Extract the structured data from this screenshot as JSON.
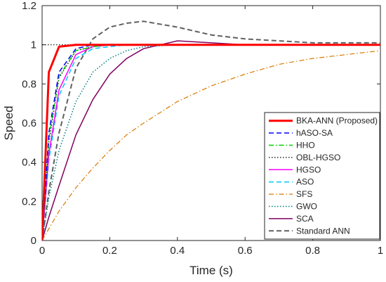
{
  "chart_data": {
    "type": "line",
    "title": "",
    "xlabel": "Time (s)",
    "ylabel": "Speed",
    "xlim": [
      0,
      1
    ],
    "ylim": [
      0,
      1.2
    ],
    "x_ticks": [
      "0",
      "0.2",
      "0.4",
      "0.6",
      "0.8",
      "1"
    ],
    "y_ticks": [
      "0",
      "0.2",
      "0.4",
      "0.6",
      "0.8",
      "1",
      "1.2"
    ],
    "grid": false,
    "legend_position": "bottom-right",
    "x": [
      0,
      0.02,
      0.05,
      0.1,
      0.15,
      0.2,
      0.25,
      0.3,
      0.4,
      0.5,
      0.6,
      0.7,
      0.8,
      0.9,
      1.0
    ],
    "series": [
      {
        "name": "BKA-ANN (Proposed)",
        "color": "#ff0000",
        "style": "solid",
        "width": 3,
        "values": [
          0,
          0.86,
          0.99,
          1.0,
          1.0,
          1.0,
          1.0,
          1.0,
          1.0,
          1.0,
          1.0,
          1.0,
          1.0,
          1.0,
          1.0
        ]
      },
      {
        "name": "hASO-SA",
        "color": "#0000ff",
        "style": "dashed",
        "width": 1.5,
        "values": [
          0,
          0.55,
          0.86,
          0.98,
          1.0,
          1.0,
          1.0,
          1.0,
          1.0,
          1.0,
          1.0,
          1.0,
          1.0,
          1.0,
          1.0
        ]
      },
      {
        "name": "HHO",
        "color": "#00d000",
        "style": "dashdot",
        "width": 1.5,
        "values": [
          0,
          0.52,
          0.84,
          0.97,
          0.99,
          1.0,
          1.0,
          1.0,
          1.0,
          1.0,
          1.0,
          1.0,
          1.0,
          1.0,
          1.0
        ]
      },
      {
        "name": "OBL-HGSO",
        "color": "#000000",
        "style": "dotted",
        "width": 1.2,
        "values": [
          0,
          0.5,
          0.83,
          0.97,
          0.99,
          1.0,
          1.0,
          1.0,
          1.0,
          1.0,
          1.0,
          1.0,
          1.0,
          1.0,
          1.0
        ]
      },
      {
        "name": "HGSO",
        "color": "#ff00ff",
        "style": "solid",
        "width": 1.5,
        "values": [
          0,
          0.44,
          0.77,
          0.95,
          0.99,
          1.0,
          1.0,
          1.0,
          1.0,
          1.0,
          1.0,
          1.0,
          1.0,
          1.0,
          1.0
        ]
      },
      {
        "name": "ASO",
        "color": "#00c8ff",
        "style": "dashed",
        "width": 1.5,
        "values": [
          0,
          0.41,
          0.74,
          0.93,
          0.98,
          0.99,
          1.0,
          1.0,
          1.0,
          1.0,
          1.0,
          1.0,
          1.0,
          1.0,
          1.0
        ]
      },
      {
        "name": "SFS",
        "color": "#d97a00",
        "style": "dashdot",
        "width": 1.2,
        "values": [
          0,
          0.06,
          0.15,
          0.27,
          0.37,
          0.46,
          0.54,
          0.6,
          0.71,
          0.79,
          0.85,
          0.9,
          0.93,
          0.95,
          0.97
        ]
      },
      {
        "name": "GWO",
        "color": "#008080",
        "style": "dotted",
        "width": 1.5,
        "values": [
          0,
          0.22,
          0.46,
          0.71,
          0.86,
          0.93,
          0.97,
          0.99,
          1.0,
          1.0,
          1.0,
          1.0,
          1.0,
          1.0,
          1.0
        ]
      },
      {
        "name": "SCA",
        "color": "#800060",
        "style": "solid",
        "width": 1.5,
        "values": [
          0,
          0.12,
          0.28,
          0.54,
          0.72,
          0.85,
          0.93,
          0.98,
          1.02,
          1.01,
          1.0,
          1.0,
          1.0,
          1.0,
          1.0
        ]
      },
      {
        "name": "Standard ANN",
        "color": "#606060",
        "style": "dashed",
        "width": 2,
        "values": [
          0,
          0.25,
          0.55,
          0.88,
          1.03,
          1.09,
          1.11,
          1.12,
          1.09,
          1.05,
          1.03,
          1.02,
          1.01,
          1.01,
          1.01
        ]
      }
    ],
    "reference_line": {
      "y": 1,
      "color": "#000000",
      "style": "dotted"
    }
  }
}
